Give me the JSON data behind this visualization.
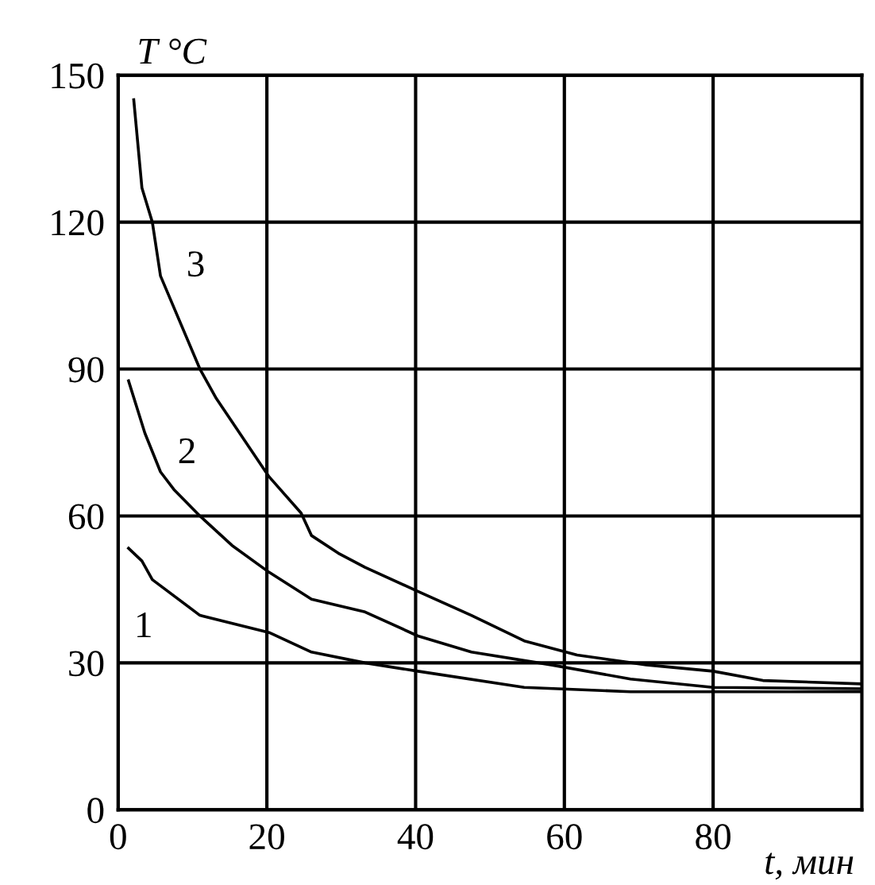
{
  "chart_data": {
    "type": "line",
    "xlabel": "t, мин",
    "ylabel": "T °C",
    "xlim": [
      0,
      100
    ],
    "ylim": [
      0,
      150
    ],
    "xticks": [
      0,
      20,
      40,
      60,
      80
    ],
    "yticks": [
      0,
      30,
      60,
      90,
      120,
      150
    ],
    "grid": true,
    "marker": "none",
    "line_style": "solid",
    "series": [
      {
        "name": "1",
        "color": "#000000",
        "x": [
          1.4,
          3.2,
          4.6,
          11,
          20.3,
          26,
          33.2,
          40.3,
          54.6,
          68.9,
          100
        ],
        "values": [
          53.4,
          50.8,
          47,
          39.7,
          36.2,
          32.2,
          30,
          28.3,
          25,
          24.1,
          24.1
        ]
      },
      {
        "name": "2",
        "color": "#000000",
        "x": [
          1.4,
          3.6,
          5.7,
          7.5,
          11,
          15.3,
          20.3,
          26,
          33.2,
          40.3,
          47.5,
          58.2,
          68.9,
          80,
          100
        ],
        "values": [
          87.6,
          76.9,
          69,
          65.4,
          60,
          54,
          48.5,
          43,
          40.4,
          35.5,
          32.2,
          29.6,
          26.7,
          25,
          24.7
        ]
      },
      {
        "name": "3",
        "color": "#000000",
        "x": [
          2.1,
          3.2,
          4.6,
          5.7,
          11,
          13.2,
          20.3,
          24.6,
          26,
          29.6,
          33.2,
          40.3,
          47.5,
          54.6,
          61.7,
          71,
          80,
          86.7,
          100
        ],
        "values": [
          145,
          127,
          120,
          109,
          90,
          84,
          68,
          60.6,
          56,
          52.4,
          49.5,
          44.6,
          39.7,
          34.5,
          31.6,
          29.6,
          28.3,
          26.4,
          25.7
        ]
      }
    ],
    "legend": false
  }
}
